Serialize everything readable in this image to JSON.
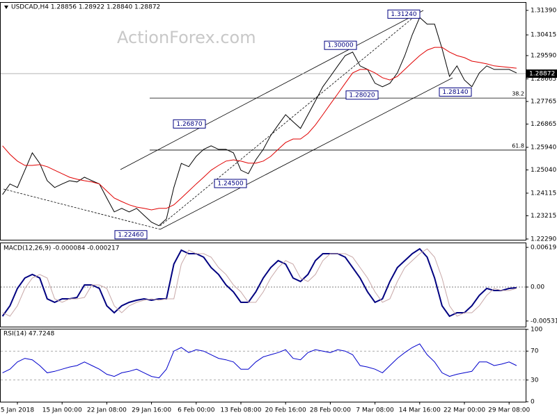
{
  "chart_data": [
    {
      "type": "line",
      "title": "USDCAD,H4 1.28856 1.28922 1.28840 1.28872",
      "watermark": "ActionForex.com",
      "x": [
        null,
        null,
        "5 Jan 2018",
        null,
        null,
        null,
        null,
        null,
        "15 Jan 00:00",
        null,
        null,
        null,
        null,
        null,
        "22 Jan 08:00",
        null,
        null,
        null,
        null,
        null,
        "29 Jan 16:00",
        null,
        null,
        null,
        null,
        null,
        "6 Feb 00:00",
        null,
        null,
        null,
        null,
        null,
        "13 Feb 08:00",
        null,
        null,
        null,
        null,
        null,
        "20 Feb 16:00",
        null,
        null,
        null,
        null,
        null,
        "28 Feb 00:00",
        null,
        null,
        null,
        null,
        null,
        "7 Mar 08:00",
        null,
        null,
        null,
        null,
        null,
        "14 Mar 16:00",
        null,
        null,
        null,
        null,
        null,
        "22 Mar 00:00",
        null,
        null,
        null,
        null,
        null,
        "29 Mar 08:00",
        null
      ],
      "series": [
        {
          "color": "#000000",
          "values": [
            1.2406,
            1.2448,
            1.2434,
            1.2503,
            1.2572,
            1.253,
            1.2461,
            1.2434,
            1.2448,
            1.2461,
            1.2456,
            1.2475,
            1.2461,
            1.2448,
            1.2392,
            1.2337,
            1.2351,
            1.2337,
            1.2351,
            1.2323,
            1.2296,
            1.2282,
            1.2309,
            1.2434,
            1.253,
            1.2517,
            1.2558,
            1.2586,
            1.26,
            1.2586,
            1.2586,
            1.2572,
            1.2503,
            1.2489,
            1.2544,
            1.2586,
            1.2641,
            1.2683,
            1.2724,
            1.2696,
            1.2669,
            1.2724,
            1.2779,
            1.2835,
            1.2876,
            1.2918,
            1.2959,
            1.2973,
            1.2918,
            1.2904,
            1.2849,
            1.2835,
            1.2849,
            1.289,
            1.2959,
            1.3042,
            1.3111,
            1.3084,
            1.3084,
            1.2987,
            1.2876,
            1.2918,
            1.2862,
            1.2835,
            1.289,
            1.2918,
            1.2904,
            1.2904,
            1.2904,
            1.289
          ]
        },
        {
          "color": "#e00000",
          "values": [
            1.26,
            1.2566,
            1.2539,
            1.2522,
            1.2522,
            1.2525,
            1.2517,
            1.2503,
            1.2489,
            1.2475,
            1.2467,
            1.2461,
            1.2456,
            1.2448,
            1.242,
            1.2392,
            1.2378,
            1.2365,
            1.2356,
            1.2351,
            1.2345,
            1.2351,
            1.2351,
            1.2365,
            1.2392,
            1.242,
            1.2448,
            1.2475,
            1.2503,
            1.2522,
            1.2539,
            1.2544,
            1.2539,
            1.2531,
            1.2531,
            1.2539,
            1.2558,
            1.2586,
            1.2613,
            1.2627,
            1.2627,
            1.2649,
            1.2683,
            1.2724,
            1.2766,
            1.2807,
            1.2849,
            1.289,
            1.2904,
            1.2904,
            1.289,
            1.2871,
            1.2862,
            1.2876,
            1.2904,
            1.2932,
            1.2959,
            1.2981,
            1.2992,
            1.2992,
            1.2973,
            1.2959,
            1.2951,
            1.2937,
            1.2932,
            1.2926,
            1.2918,
            1.2915,
            1.2912,
            1.2909
          ]
        }
      ],
      "ylim": [
        1.2226,
        1.3172
      ],
      "yticks": [
        {
          "value": 1.3139,
          "label": "1.31390"
        },
        1.30415,
        {
          "value": 1.2959,
          "label": "1.29590"
        },
        1.28665,
        1.27765,
        1.26865,
        {
          "value": 1.2594,
          "label": "1.25940"
        },
        {
          "value": 1.2504,
          "label": "1.25040"
        },
        1.24115,
        1.23215,
        {
          "value": 1.2229,
          "label": "1.22290"
        }
      ],
      "last_price": {
        "value": 1.28872,
        "label": "1.28872"
      },
      "levels": [
        {
          "value": 1.279,
          "label": "38.2"
        },
        {
          "value": 1.2583,
          "label": "61.8"
        }
      ],
      "annotations": [
        {
          "value": 1.3124,
          "label": "1.31240"
        },
        {
          "value": 1.3,
          "label": "1.30000"
        },
        {
          "value": 1.2802,
          "label": "1.28020"
        },
        {
          "value": 1.2814,
          "label": "1.28140"
        },
        {
          "value": 1.2687,
          "label": "1.26870"
        },
        {
          "value": 1.245,
          "label": "1.24500"
        },
        {
          "value": 1.2246,
          "label": "1.22460"
        }
      ]
    },
    {
      "type": "line",
      "title": "MACD(12,26,9) -0.000084 -0.000217",
      "series": [
        {
          "color": "#000080",
          "values": [
            -0.00456,
            -0.00293,
            -0.00022,
            0.00141,
            0.00196,
            0.00141,
            -0.00185,
            -0.00239,
            -0.00185,
            -0.00185,
            -0.00163,
            0.00033,
            0.00033,
            -0.00022,
            -0.00293,
            -0.00402,
            -0.00293,
            -0.00239,
            -0.00206,
            -0.00185,
            -0.00206,
            -0.00185,
            -0.00185,
            0.00358,
            0.00576,
            0.00521,
            0.00521,
            0.00467,
            0.00304,
            0.00196,
            0.00033,
            -0.00076,
            -0.00239,
            -0.00239,
            -0.00076,
            0.00141,
            0.00304,
            0.00413,
            0.00358,
            0.00141,
            0.00087,
            0.00196,
            0.00413,
            0.00521,
            0.00521,
            0.00521,
            0.00467,
            0.00304,
            0.00141,
            -0.00076,
            -0.00239,
            -0.00185,
            0.00087,
            0.00304,
            0.00413,
            0.00521,
            0.00597,
            0.00467,
            0.00141,
            -0.00293,
            -0.00456,
            -0.00402,
            -0.00402,
            -0.00293,
            -0.0013,
            -0.00022,
            -0.00054,
            -0.00054,
            -0.00022,
            -0.00011
          ]
        },
        {
          "color": "#c8a8a8",
          "values": [
            -0.004,
            -0.00456,
            -0.00293,
            -0.00022,
            0.00141,
            0.00196,
            0.00141,
            -0.00185,
            -0.00239,
            -0.00185,
            -0.00185,
            -0.00163,
            0.00033,
            0.00033,
            -0.00022,
            -0.00293,
            -0.00402,
            -0.00293,
            -0.00239,
            -0.00206,
            -0.00185,
            -0.00206,
            -0.00185,
            -0.00185,
            0.00358,
            0.00576,
            0.00521,
            0.00521,
            0.00467,
            0.00304,
            0.00196,
            0.00033,
            -0.00076,
            -0.00239,
            -0.00239,
            -0.00076,
            0.00141,
            0.00304,
            0.00413,
            0.00358,
            0.00141,
            0.00087,
            0.00196,
            0.00413,
            0.00521,
            0.00521,
            0.00521,
            0.00467,
            0.00304,
            0.00141,
            -0.00076,
            -0.00239,
            -0.00185,
            0.00087,
            0.00304,
            0.00413,
            0.00521,
            0.00597,
            0.00467,
            0.00141,
            -0.00293,
            -0.00456,
            -0.00402,
            -0.00402,
            -0.00293,
            -0.0013,
            -0.00022,
            -0.00054,
            -0.00054,
            -0.00022
          ]
        }
      ],
      "ylim": [
        -0.00619,
        0.00684
      ],
      "yticks": [
        0.006191,
        {
          "value": 0,
          "label": "0.00"
        },
        -0.00531
      ],
      "zero_line": true
    },
    {
      "type": "line",
      "title": "RSI(14) 47.7248",
      "series": [
        {
          "color": "#0000cc",
          "values": [
            40,
            45,
            55,
            60,
            58,
            50,
            40,
            42,
            45,
            48,
            50,
            55,
            50,
            45,
            38,
            35,
            40,
            42,
            45,
            40,
            35,
            33,
            45,
            70,
            75,
            68,
            72,
            70,
            65,
            60,
            58,
            55,
            45,
            45,
            55,
            62,
            65,
            68,
            72,
            60,
            58,
            68,
            72,
            70,
            68,
            72,
            70,
            65,
            50,
            48,
            45,
            40,
            50,
            60,
            68,
            75,
            80,
            65,
            55,
            40,
            35,
            38,
            40,
            42,
            55,
            55,
            50,
            52,
            55,
            50
          ]
        }
      ],
      "ylim": [
        0,
        100
      ],
      "yticks": [
        100,
        70,
        30,
        0
      ],
      "grid": true
    }
  ]
}
